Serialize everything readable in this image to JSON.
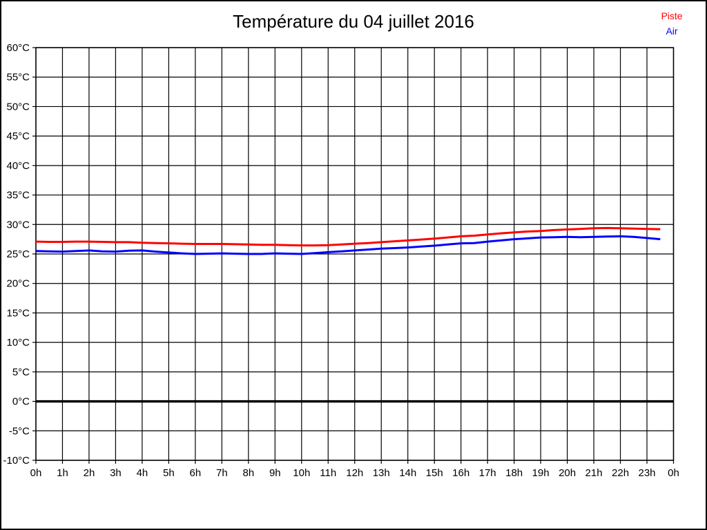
{
  "window": {
    "background": "#ffffff",
    "border_color": "#000000"
  },
  "chart_data": {
    "type": "line",
    "title": "Température du 04 juillet 2016",
    "xlabel": "",
    "ylabel": "",
    "xlim": [
      0,
      24
    ],
    "ylim": [
      -10,
      60
    ],
    "y_tick_step": 5,
    "x_tick_step_hours": 1,
    "grid": true,
    "zero_line_bold": true,
    "legend_position": "top-right",
    "x_tick_labels": [
      "0h",
      "1h",
      "2h",
      "3h",
      "4h",
      "5h",
      "6h",
      "7h",
      "8h",
      "9h",
      "10h",
      "11h",
      "12h",
      "13h",
      "14h",
      "15h",
      "16h",
      "17h",
      "18h",
      "19h",
      "20h",
      "21h",
      "22h",
      "23h",
      "0h"
    ],
    "y_tick_labels": [
      "60°C",
      "55°C",
      "50°C",
      "45°C",
      "40°C",
      "35°C",
      "30°C",
      "25°C",
      "20°C",
      "15°C",
      "10°C",
      "5°C",
      "0°C",
      "-5°C",
      "-10°C"
    ],
    "x": [
      0,
      0.5,
      1,
      1.5,
      2,
      2.5,
      3,
      3.5,
      4,
      4.5,
      5,
      5.5,
      6,
      6.5,
      7,
      7.5,
      8,
      8.5,
      9,
      9.5,
      10,
      10.5,
      11,
      11.5,
      12,
      12.5,
      13,
      13.5,
      14,
      14.5,
      15,
      15.5,
      16,
      16.5,
      17,
      17.5,
      18,
      18.5,
      19,
      19.5,
      20,
      20.5,
      21,
      21.5,
      22,
      22.5,
      23,
      23.5
    ],
    "series": [
      {
        "name": "Piste",
        "color": "#ff0000",
        "values": [
          27.1,
          27.05,
          27.05,
          27.1,
          27.1,
          27.05,
          27.0,
          27.0,
          26.9,
          26.85,
          26.8,
          26.75,
          26.7,
          26.7,
          26.7,
          26.65,
          26.6,
          26.55,
          26.55,
          26.5,
          26.45,
          26.45,
          26.5,
          26.6,
          26.75,
          26.85,
          27.0,
          27.15,
          27.3,
          27.45,
          27.6,
          27.8,
          28.0,
          28.1,
          28.3,
          28.5,
          28.65,
          28.8,
          28.9,
          29.05,
          29.15,
          29.25,
          29.35,
          29.4,
          29.35,
          29.3,
          29.25,
          29.2
        ]
      },
      {
        "name": "Air",
        "color": "#0000ff",
        "values": [
          25.5,
          25.45,
          25.4,
          25.5,
          25.6,
          25.45,
          25.4,
          25.55,
          25.6,
          25.4,
          25.25,
          25.1,
          25.0,
          25.05,
          25.1,
          25.05,
          25.0,
          25.0,
          25.1,
          25.05,
          25.0,
          25.15,
          25.3,
          25.45,
          25.6,
          25.75,
          25.9,
          26.0,
          26.1,
          26.25,
          26.4,
          26.6,
          26.8,
          26.85,
          27.1,
          27.3,
          27.5,
          27.65,
          27.8,
          27.85,
          27.9,
          27.85,
          27.9,
          27.95,
          28.0,
          27.9,
          27.7,
          27.5
        ]
      }
    ]
  }
}
